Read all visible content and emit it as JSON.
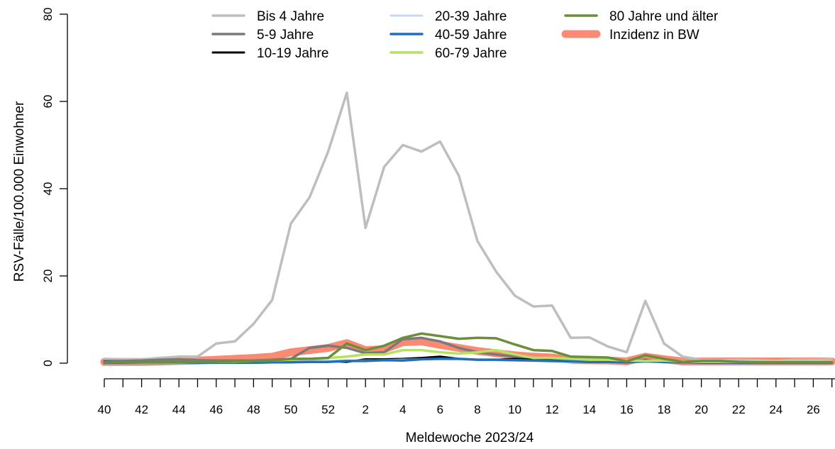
{
  "chart_data": {
    "type": "line",
    "xlabel": "Meldewoche 2023/24",
    "ylabel": "RSV-Fälle/100.000 Einwohner",
    "ylim": [
      0,
      80
    ],
    "y_ticks": [
      "0",
      "20",
      "40",
      "60",
      "80"
    ],
    "x_weeks": [
      "40",
      "41",
      "42",
      "43",
      "44",
      "45",
      "46",
      "47",
      "48",
      "49",
      "50",
      "51",
      "52",
      "1",
      "2",
      "3",
      "4",
      "5",
      "6",
      "7",
      "8",
      "9",
      "10",
      "11",
      "12",
      "13",
      "14",
      "15",
      "16",
      "17",
      "18",
      "19",
      "20",
      "21",
      "22",
      "23",
      "24",
      "25",
      "26",
      "27"
    ],
    "x_tick_labels": [
      "40",
      "42",
      "44",
      "46",
      "48",
      "50",
      "52",
      "2",
      "4",
      "6",
      "8",
      "10",
      "12",
      "14",
      "16",
      "18",
      "20",
      "22",
      "24",
      "26"
    ],
    "x_label_step": 2,
    "grid": false,
    "legend": {
      "position": "top",
      "columns": 3
    },
    "series": [
      {
        "name": "Bis 4 Jahre",
        "color": "#bebebe",
        "width": 3.5,
        "values": [
          1.0,
          0.9,
          0.9,
          1.2,
          1.5,
          1.5,
          4.5,
          5.0,
          9.0,
          14.5,
          32,
          38,
          48.5,
          62,
          31,
          45,
          50,
          48.5,
          50.8,
          43,
          28,
          21,
          15.5,
          13,
          13.2,
          5.8,
          5.9,
          3.8,
          2.5,
          14.3,
          4.5,
          1.5,
          0.8,
          0.7,
          0.8,
          0.7,
          0.5,
          0.8,
          0.8,
          1.0
        ]
      },
      {
        "name": "5-9 Jahre",
        "color": "#7a7a7a",
        "width": 3.5,
        "values": [
          0.5,
          0.5,
          0.6,
          0.8,
          0.9,
          0.7,
          0.6,
          0.6,
          0.6,
          0.8,
          1.0,
          3.5,
          4.0,
          3.5,
          2.3,
          2.5,
          5.5,
          5.8,
          5.0,
          3.5,
          2.5,
          2.0,
          1.5,
          1.0,
          0.8,
          0.5,
          0.5,
          0.4,
          0.3,
          0.8,
          0.2,
          0.2,
          0.2,
          0.2,
          0.2,
          0.2,
          0.2,
          0.2,
          0.2,
          0.2
        ]
      },
      {
        "name": "10-19 Jahre",
        "color": "#000000",
        "width": 3,
        "values": [
          0.3,
          0.2,
          0.2,
          0.2,
          0.2,
          0.3,
          0.3,
          0.3,
          0.3,
          0.3,
          0.4,
          0.4,
          0.5,
          0.3,
          0.9,
          0.9,
          1.0,
          1.2,
          1.5,
          1.0,
          0.8,
          0.8,
          1.0,
          0.8,
          0.6,
          0.4,
          0.3,
          0.3,
          0.2,
          0.6,
          0.3,
          0.2,
          0.1,
          0.1,
          0.1,
          0.1,
          0.1,
          0.1,
          0.1,
          0.1
        ]
      },
      {
        "name": "20-39 Jahre",
        "color": "#c6d9f1",
        "width": 3,
        "values": [
          0.2,
          0.2,
          0.2,
          0.2,
          0.2,
          0.2,
          0.2,
          0.2,
          0.3,
          0.3,
          0.4,
          0.4,
          0.5,
          0.6,
          0.6,
          0.7,
          0.8,
          0.9,
          1.0,
          0.9,
          0.8,
          0.7,
          0.6,
          0.5,
          0.4,
          0.3,
          0.3,
          0.2,
          0.2,
          0.3,
          0.2,
          0.2,
          0.2,
          0.2,
          0.2,
          0.2,
          0.2,
          0.2,
          0.2,
          0.2
        ]
      },
      {
        "name": "40-59 Jahre",
        "color": "#1f6fbd",
        "width": 3.5,
        "values": [
          0.1,
          0.1,
          0.1,
          0.1,
          0.1,
          0.1,
          0.1,
          0.1,
          0.1,
          0.2,
          0.2,
          0.3,
          0.3,
          0.5,
          0.5,
          0.7,
          0.6,
          0.9,
          1.0,
          1.0,
          0.8,
          0.8,
          0.7,
          0.6,
          0.5,
          0.4,
          0.3,
          0.3,
          0.2,
          0.4,
          0.3,
          0.2,
          0.2,
          0.2,
          0.1,
          0.1,
          0.1,
          0.1,
          0.1,
          0.1
        ]
      },
      {
        "name": "60-79 Jahre",
        "color": "#b5e35f",
        "width": 3.5,
        "values": [
          0.2,
          0.2,
          0.2,
          0.2,
          0.2,
          0.3,
          0.3,
          0.4,
          0.5,
          0.6,
          0.8,
          1.0,
          1.2,
          1.5,
          2.0,
          2.0,
          3.0,
          3.0,
          2.5,
          2.2,
          2.5,
          3.0,
          2.0,
          1.2,
          1.2,
          1.0,
          0.8,
          0.8,
          0.6,
          0.5,
          0.6,
          0.4,
          0.3,
          0.3,
          0.3,
          0.3,
          0.3,
          0.3,
          0.3,
          0.3
        ]
      },
      {
        "name": "80 Jahre und älter",
        "color": "#6b8e3a",
        "width": 3.5,
        "values": [
          0.2,
          0.2,
          0.3,
          0.3,
          0.3,
          0.3,
          0.3,
          0.5,
          0.5,
          0.6,
          1.0,
          1.0,
          1.2,
          4.5,
          3.0,
          4.0,
          5.8,
          6.8,
          6.2,
          5.6,
          5.8,
          5.7,
          4.3,
          3.0,
          2.8,
          1.5,
          1.4,
          1.3,
          0.4,
          1.8,
          1.0,
          0.3,
          0.5,
          0.5,
          0.3,
          0.2,
          0.2,
          0.2,
          0.2,
          0.2
        ]
      },
      {
        "name": "Inzidenz in BW",
        "color": "#fa8a74",
        "width": 11,
        "values": [
          0.3,
          0.3,
          0.3,
          0.4,
          0.5,
          0.6,
          0.8,
          1.0,
          1.2,
          1.5,
          2.5,
          3.0,
          3.5,
          4.6,
          3.0,
          3.2,
          4.8,
          5.0,
          4.2,
          3.5,
          2.8,
          2.3,
          1.8,
          1.5,
          1.3,
          0.8,
          0.7,
          0.6,
          0.4,
          1.5,
          0.9,
          0.4,
          0.4,
          0.4,
          0.4,
          0.4,
          0.4,
          0.4,
          0.4,
          0.4
        ]
      }
    ],
    "draw_order": [
      7,
      0,
      1,
      2,
      3,
      4,
      5,
      6
    ]
  }
}
